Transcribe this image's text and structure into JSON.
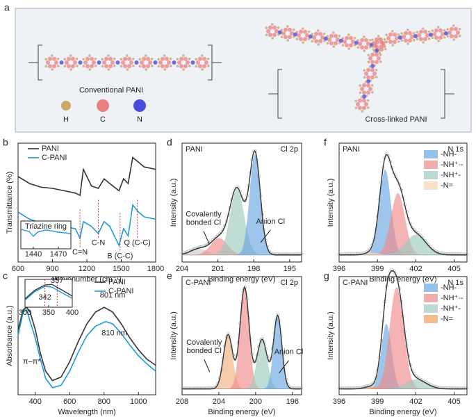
{
  "panel_a": {
    "label": "a",
    "captions": [
      "Conventional PANI",
      "Cross-linked PANI"
    ],
    "atoms": [
      {
        "name": "H",
        "color": "#c8a86a"
      },
      {
        "name": "C",
        "color": "#ea7f80"
      },
      {
        "name": "N",
        "color": "#4a4ae0"
      }
    ]
  },
  "chart_data": [
    {
      "type": "line",
      "label": "b",
      "xlabel": "Wavenumber (cm⁻¹)",
      "ylabel": "Transmittance (%)",
      "xlim": [
        600,
        1800
      ],
      "xticks": [
        600,
        900,
        1200,
        1500,
        1800
      ],
      "ylim": [
        0,
        1
      ],
      "series": [
        {
          "name": "PANI",
          "color": "#333333",
          "x": [
            600,
            700,
            800,
            900,
            1000,
            1100,
            1140,
            1170,
            1240,
            1300,
            1350,
            1400,
            1480,
            1520,
            1560,
            1600,
            1650,
            1700,
            1800
          ],
          "values": [
            0.72,
            0.66,
            0.63,
            0.62,
            0.6,
            0.58,
            0.56,
            0.78,
            0.64,
            0.62,
            0.7,
            0.66,
            0.6,
            0.7,
            0.66,
            0.88,
            0.84,
            0.8,
            0.78
          ]
        },
        {
          "name": "C-PANI",
          "color": "#1a9ad6",
          "x": [
            600,
            700,
            800,
            900,
            1000,
            1100,
            1140,
            1170,
            1240,
            1300,
            1350,
            1400,
            1480,
            1520,
            1560,
            1600,
            1650,
            1700,
            1800
          ],
          "values": [
            0.42,
            0.36,
            0.33,
            0.32,
            0.3,
            0.28,
            0.2,
            0.34,
            0.3,
            0.24,
            0.34,
            0.3,
            0.14,
            0.28,
            0.22,
            0.48,
            0.42,
            0.38,
            0.36
          ]
        }
      ],
      "annotations": [
        {
          "text": "C=N",
          "x": 1140,
          "y": 0.08
        },
        {
          "text": "C-N",
          "x": 1300,
          "y": 0.16
        },
        {
          "text": "B (C-C)",
          "x": 1490,
          "y": 0.05
        },
        {
          "text": "Q (C-C)",
          "x": 1640,
          "y": 0.16
        }
      ],
      "inset": {
        "title": "Triazine ring",
        "xlim": [
          1425,
          1485
        ],
        "xticks": [
          1440,
          1470
        ],
        "ylim": [
          0,
          1
        ],
        "series": [
          {
            "color": "#1a9ad6",
            "x": [
              1425,
              1435,
              1440,
              1445,
              1455,
              1470,
              1485
            ],
            "values": [
              0.7,
              0.62,
              0.45,
              0.6,
              0.68,
              0.6,
              0.55
            ]
          }
        ]
      }
    },
    {
      "type": "line",
      "label": "c",
      "xlabel": "Wavelength (nm)",
      "ylabel": "Absorbance (a.u.)",
      "xlim": [
        300,
        1100
      ],
      "xticks": [
        400,
        600,
        800,
        1000
      ],
      "ylim": [
        0,
        1
      ],
      "series": [
        {
          "name": "PANI",
          "color": "#333333",
          "x": [
            300,
            330,
            350,
            370,
            400,
            430,
            460,
            500,
            550,
            600,
            650,
            700,
            750,
            801,
            850,
            900,
            950,
            1000,
            1050,
            1100
          ],
          "values": [
            0.55,
            0.72,
            0.74,
            0.7,
            0.55,
            0.35,
            0.2,
            0.12,
            0.15,
            0.28,
            0.45,
            0.6,
            0.7,
            0.74,
            0.7,
            0.6,
            0.48,
            0.38,
            0.3,
            0.25
          ]
        },
        {
          "name": "C-PANI",
          "color": "#1a9ad6",
          "x": [
            300,
            330,
            350,
            370,
            400,
            430,
            460,
            500,
            550,
            600,
            650,
            700,
            750,
            810,
            850,
            900,
            950,
            1000,
            1050,
            1100
          ],
          "values": [
            0.5,
            0.7,
            0.72,
            0.62,
            0.48,
            0.3,
            0.14,
            0.06,
            0.08,
            0.2,
            0.36,
            0.5,
            0.58,
            0.62,
            0.6,
            0.52,
            0.42,
            0.33,
            0.26,
            0.2
          ]
        }
      ],
      "annotations": [
        {
          "text": "801 nm",
          "x": 850,
          "y": 0.84
        },
        {
          "text": "810 nm",
          "x": 860,
          "y": 0.52,
          "color": "#1a9ad6"
        },
        {
          "text": "π–π*",
          "x": 380,
          "y": 0.28
        }
      ],
      "inset": {
        "xlim": [
          300,
          400
        ],
        "xticks": [
          300,
          350,
          400
        ],
        "ylim": [
          0,
          1
        ],
        "series": [
          {
            "color": "#333333",
            "x": [
              300,
              320,
              342,
              357,
              380,
              400
            ],
            "values": [
              0.3,
              0.6,
              0.8,
              0.82,
              0.6,
              0.4
            ]
          },
          {
            "color": "#1a9ad6",
            "x": [
              300,
              320,
              342,
              357,
              380,
              400
            ],
            "values": [
              0.25,
              0.55,
              0.75,
              0.72,
              0.5,
              0.32
            ]
          }
        ],
        "annotations": [
          {
            "text": "342",
            "x": 342,
            "y": 0.35,
            "color": "#1a9ad6"
          },
          {
            "text": "357",
            "x": 368,
            "y": 0.95
          }
        ]
      }
    },
    {
      "type": "area",
      "label": "d",
      "title": "PANI",
      "title_color": "#222222",
      "core_level": "Cl 2p",
      "xlabel": "Binding energy (eV)",
      "ylabel": "Intensity (a.u.)",
      "xlim": [
        204,
        194
      ],
      "xticks": [
        204,
        201,
        198,
        195
      ],
      "ylim": [
        0,
        1
      ],
      "baseline": 0.06,
      "peaks": [
        {
          "center": 202.6,
          "height": 0.05,
          "width": 0.7,
          "color": "#cccccc"
        },
        {
          "center": 200.9,
          "height": 0.14,
          "width": 0.7,
          "color": "#f08a8a"
        },
        {
          "center": 199.4,
          "height": 0.55,
          "width": 0.6,
          "color": "#9ccbbd"
        },
        {
          "center": 197.9,
          "height": 0.85,
          "width": 0.45,
          "color": "#6aa6e0"
        }
      ],
      "annotations": [
        {
          "lines": [
            "Covalently",
            "bonded Cl"
          ],
          "x": 202.2,
          "y": 0.4
        },
        {
          "lines": [
            "Anion Cl"
          ],
          "x": 196.6,
          "y": 0.34
        }
      ]
    },
    {
      "type": "area",
      "label": "e",
      "title": "C-PANI",
      "title_color": "#1a9ad6",
      "core_level": "Cl 2p",
      "xlabel": "Binding energy (eV)",
      "ylabel": "Intensity (a.u.)",
      "xlim": [
        208,
        195
      ],
      "xticks": [
        208,
        204,
        200,
        196
      ],
      "ylim": [
        0,
        1
      ],
      "baseline": 0.05,
      "peaks": [
        {
          "center": 203.0,
          "height": 0.46,
          "width": 0.5,
          "color": "#f0b080"
        },
        {
          "center": 201.2,
          "height": 0.86,
          "width": 0.5,
          "color": "#f08a8a"
        },
        {
          "center": 199.3,
          "height": 0.42,
          "width": 0.55,
          "color": "#9ccbbd"
        },
        {
          "center": 197.6,
          "height": 0.62,
          "width": 0.45,
          "color": "#6aa6e0"
        }
      ],
      "annotations": [
        {
          "lines": [
            "Covalently",
            "bonded Cl"
          ],
          "x": 205.6,
          "y": 0.44
        },
        {
          "lines": [
            "Anion Cl"
          ],
          "x": 196.4,
          "y": 0.36
        }
      ]
    },
    {
      "type": "area",
      "label": "f",
      "title": "PANI",
      "title_color": "#222222",
      "core_level": "N 1s",
      "xlabel": "Binding energy (eV)",
      "ylabel": "Intensity (a.u.)",
      "xlim": [
        396,
        406
      ],
      "xticks": [
        396,
        399,
        402,
        405
      ],
      "ylim": [
        0,
        1
      ],
      "baseline": 0.06,
      "peaks": [
        {
          "name": "-NH-",
          "center": 399.6,
          "height": 0.72,
          "width": 0.45,
          "color": "#6aa6e0"
        },
        {
          "name": "-NH⁺·-",
          "center": 400.6,
          "height": 0.52,
          "width": 0.55,
          "color": "#f08a8a"
        },
        {
          "name": "-NH⁺-",
          "center": 402.0,
          "height": 0.17,
          "width": 0.8,
          "color": "#9ccbbd"
        },
        {
          "name": "-N=",
          "center": 398.6,
          "height": 0.02,
          "width": 0.5,
          "color": "#f7d3b5"
        }
      ]
    },
    {
      "type": "area",
      "label": "g",
      "title": "C-PANI",
      "title_color": "#1a9ad6",
      "core_level": "N 1s",
      "xlabel": "Binding energy (eV)",
      "ylabel": "Intensity (a.u.)",
      "xlim": [
        396,
        406
      ],
      "xticks": [
        396,
        399,
        402,
        405
      ],
      "ylim": [
        0,
        1
      ],
      "baseline": 0.05,
      "peaks": [
        {
          "name": "-NH-",
          "center": 399.7,
          "height": 0.55,
          "width": 0.4,
          "color": "#6aa6e0"
        },
        {
          "name": "-NH⁺·-",
          "center": 400.5,
          "height": 0.86,
          "width": 0.55,
          "color": "#f08a8a"
        },
        {
          "name": "-NH⁺-",
          "center": 402.0,
          "height": 0.08,
          "width": 0.8,
          "color": "#9ccbbd"
        },
        {
          "name": "-N=",
          "center": 398.5,
          "height": 0.02,
          "width": 0.5,
          "color": "#f0a060"
        }
      ]
    }
  ]
}
